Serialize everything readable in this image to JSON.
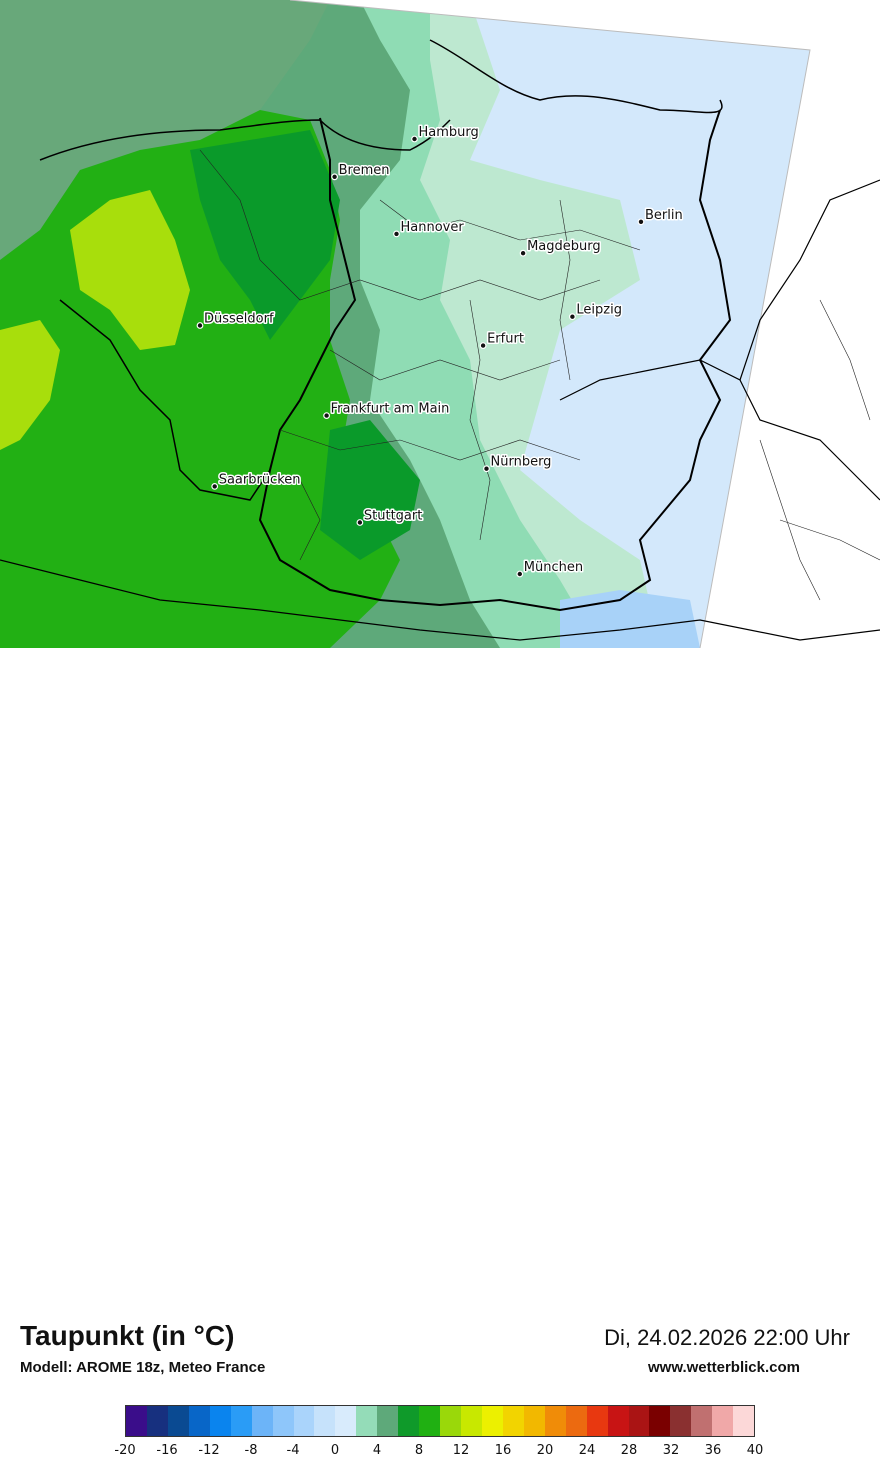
{
  "map": {
    "colors": {
      "land_west_dark": "#0a9a2a",
      "land_west": "#22b014",
      "land_bright": "#a8de0c",
      "land_mid": "#5ea97a",
      "land_light": "#8fdcb4",
      "land_pale": "#bde8d0",
      "land_east": "#d3e8fb",
      "land_blue": "#a8d2f8",
      "sea": "#68a87a",
      "outside": "#ffffff",
      "border": "#000000"
    },
    "cities": [
      {
        "name": "Hamburg",
        "lon": 10.0,
        "lat": 53.55
      },
      {
        "name": "Bremen",
        "lon": 8.8,
        "lat": 53.08
      },
      {
        "name": "Berlin",
        "lon": 13.4,
        "lat": 52.52
      },
      {
        "name": "Hannover",
        "lon": 9.73,
        "lat": 52.37
      },
      {
        "name": "Magdeburg",
        "lon": 11.63,
        "lat": 52.13
      },
      {
        "name": "Düsseldorf",
        "lon": 6.78,
        "lat": 51.23
      },
      {
        "name": "Leipzig",
        "lon": 12.37,
        "lat": 51.34
      },
      {
        "name": "Erfurt",
        "lon": 11.03,
        "lat": 50.98
      },
      {
        "name": "Frankfurt am Main",
        "lon": 8.68,
        "lat": 50.11
      },
      {
        "name": "Nürnberg",
        "lon": 11.08,
        "lat": 49.45
      },
      {
        "name": "Saarbrücken",
        "lon": 7.0,
        "lat": 49.23
      },
      {
        "name": "Stuttgart",
        "lon": 9.18,
        "lat": 48.78
      },
      {
        "name": "München",
        "lon": 11.58,
        "lat": 48.14
      }
    ]
  },
  "legend": {
    "title": "Taupunkt (in °C)",
    "model": "Modell: AROME 18z, Meteo France",
    "datetime": "Di, 24.02.2026 22:00 Uhr",
    "website": "www.wetterblick.com",
    "colorbar": {
      "min": -20,
      "max": 40,
      "step": 2,
      "tick_labels": [
        "-20",
        "-16",
        "-12",
        "-8",
        "-4",
        "0",
        "4",
        "8",
        "12",
        "16",
        "20",
        "24",
        "28",
        "32",
        "36",
        "40"
      ],
      "colors": [
        "#3a0d8a",
        "#17307f",
        "#0a4a92",
        "#0866c8",
        "#0a84ee",
        "#2a9cf6",
        "#6cb4f8",
        "#8ec6fa",
        "#aad4fb",
        "#c6e2fb",
        "#d8ebfc",
        "#94dcb8",
        "#5ea97a",
        "#0f9a2a",
        "#20b012",
        "#9ad80a",
        "#c8e800",
        "#ecf000",
        "#f2d400",
        "#f2b800",
        "#f08c08",
        "#ec6a10",
        "#e83810",
        "#c81414",
        "#aa1414",
        "#7a0000",
        "#8a3030",
        "#c07070",
        "#f0a8a8",
        "#fcd8d8"
      ]
    }
  }
}
